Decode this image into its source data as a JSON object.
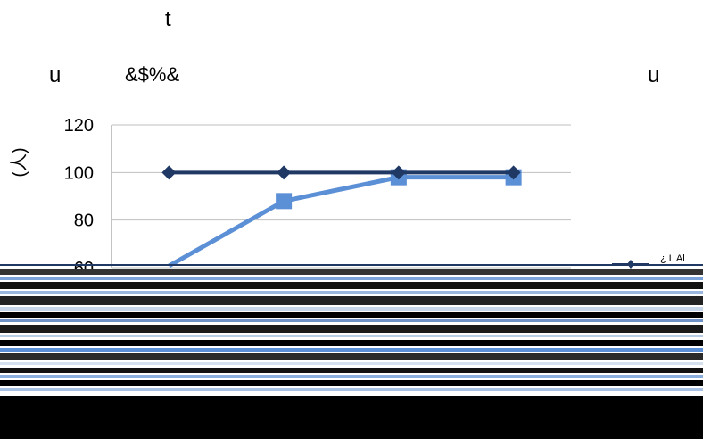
{
  "header": {
    "top_char": "t",
    "left_char": "u",
    "code_text": "&$%&",
    "right_char": "u"
  },
  "chart_data": {
    "type": "line",
    "ylabel": "(人)",
    "ylim": [
      60,
      120
    ],
    "yticks": [
      60,
      80,
      100,
      120
    ],
    "grid": true,
    "categories": [
      "",
      "",
      "",
      ""
    ],
    "series": [
      {
        "name": "",
        "color": "#1f3864",
        "marker": "diamond",
        "values": [
          100,
          100,
          100,
          100
        ]
      },
      {
        "name": "",
        "color": "#5b8fd6",
        "marker": "square",
        "values": [
          55,
          88,
          98,
          98
        ]
      }
    ],
    "legend": {
      "position": "right",
      "visible_text": "¿ L Al"
    }
  }
}
